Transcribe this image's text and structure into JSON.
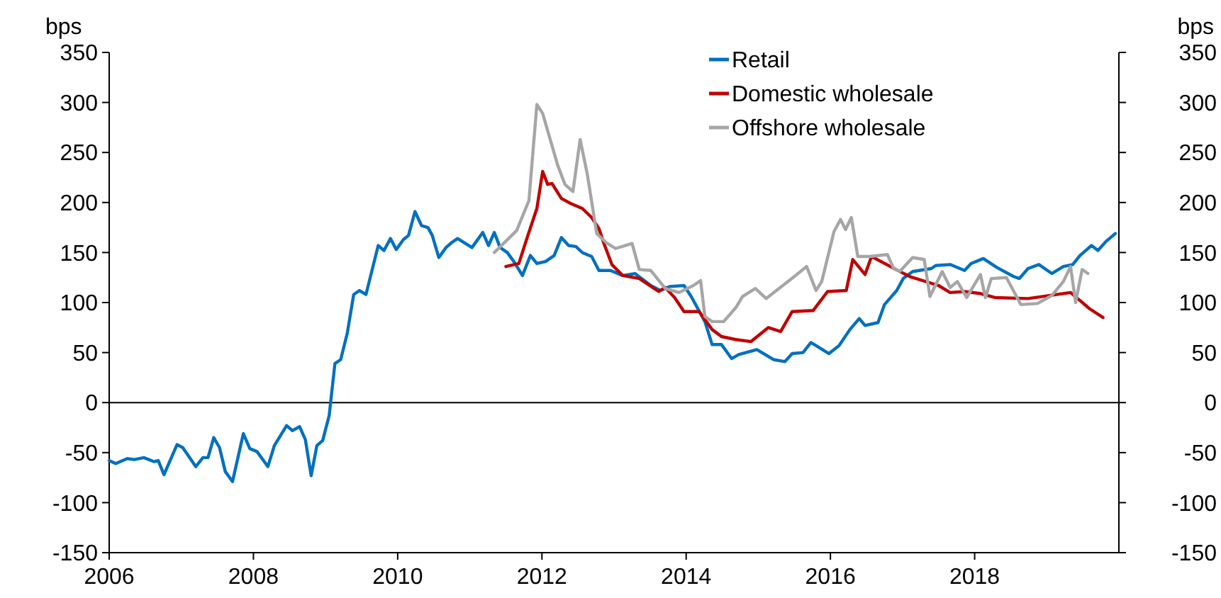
{
  "chart_data": {
    "type": "line",
    "ylabel": "bps",
    "y2label": "bps",
    "xlim": [
      2006,
      2020
    ],
    "xticks": [
      2006,
      2008,
      2010,
      2012,
      2014,
      2016,
      2018
    ],
    "ylim": [
      -150,
      350
    ],
    "yticks": [
      -150,
      -100,
      -50,
      0,
      50,
      100,
      150,
      200,
      250,
      300,
      350
    ],
    "y2lim": [
      -150,
      350
    ],
    "y2ticks": [
      -150,
      -100,
      -50,
      0,
      50,
      100,
      150,
      200,
      250,
      300,
      350
    ],
    "grid": false,
    "legend": "top right",
    "marker": "none",
    "line_style": "solid",
    "ref_lines": [
      {
        "axis": "y",
        "value": 0,
        "color": "#000000"
      }
    ],
    "series": [
      {
        "name": "Retail",
        "color": "#0070c0",
        "x": [
          2006.0,
          2006.09,
          2006.25,
          2006.35,
          2006.48,
          2006.62,
          2006.68,
          2006.76,
          2006.94,
          2007.02,
          2007.2,
          2007.3,
          2007.37,
          2007.45,
          2007.53,
          2007.61,
          2007.71,
          2007.86,
          2007.95,
          2008.05,
          2008.2,
          2008.29,
          2008.46,
          2008.54,
          2008.64,
          2008.72,
          2008.8,
          2008.88,
          2008.96,
          2009.05,
          2009.13,
          2009.21,
          2009.3,
          2009.39,
          2009.47,
          2009.56,
          2009.64,
          2009.73,
          2009.81,
          2009.9,
          2009.98,
          2010.08,
          2010.15,
          2010.24,
          2010.33,
          2010.42,
          2010.48,
          2010.57,
          2010.67,
          2010.75,
          2010.83,
          2011.03,
          2011.18,
          2011.26,
          2011.34,
          2011.42,
          2011.52,
          2011.62,
          2011.73,
          2011.84,
          2011.93,
          2012.05,
          2012.17,
          2012.27,
          2012.37,
          2012.47,
          2012.56,
          2012.69,
          2012.79,
          2012.95,
          2013.12,
          2013.29,
          2013.38,
          2013.51,
          2013.64,
          2013.77,
          2013.97,
          2014.07,
          2014.26,
          2014.36,
          2014.49,
          2014.63,
          2014.73,
          2014.98,
          2015.21,
          2015.37,
          2015.47,
          2015.62,
          2015.73,
          2015.98,
          2016.12,
          2016.27,
          2016.4,
          2016.48,
          2016.66,
          2016.75,
          2016.92,
          2017.01,
          2017.14,
          2017.4,
          2017.46,
          2017.66,
          2017.86,
          2017.95,
          2018.12,
          2018.31,
          2018.54,
          2018.62,
          2018.74,
          2018.89,
          2019.07,
          2019.23,
          2019.36,
          2019.46,
          2019.62,
          2019.71,
          2019.82,
          2019.95
        ],
        "values": [
          -58,
          -61,
          -56,
          -57,
          -55,
          -59,
          -58,
          -72,
          -42,
          -45,
          -64,
          -55,
          -55,
          -35,
          -45,
          -69,
          -79,
          -31,
          -46,
          -49,
          -64,
          -43,
          -23,
          -28,
          -24,
          -37,
          -73,
          -43,
          -38,
          -13,
          39,
          43,
          69,
          108,
          112,
          108,
          131,
          157,
          152,
          164,
          153,
          163,
          167,
          191,
          177,
          175,
          167,
          145,
          155,
          160,
          164,
          155,
          170,
          157,
          170,
          155,
          150,
          140,
          127,
          147,
          139,
          141,
          147,
          165,
          157,
          156,
          150,
          146,
          132,
          132,
          127,
          129,
          124,
          117,
          112,
          116,
          117,
          106,
          81,
          58,
          58,
          44,
          48,
          53,
          43,
          41,
          49,
          50,
          60,
          49,
          57,
          73,
          84,
          77,
          80,
          98,
          112,
          124,
          131,
          134,
          137,
          138,
          132,
          139,
          144,
          135,
          126,
          124,
          134,
          138,
          129,
          136,
          138,
          147,
          157,
          152,
          161,
          169
        ]
      },
      {
        "name": "Domestic wholesale",
        "color": "#c00000",
        "x": [
          2011.5,
          2011.68,
          2011.8,
          2011.93,
          2012.01,
          2012.08,
          2012.14,
          2012.27,
          2012.4,
          2012.56,
          2012.69,
          2012.79,
          2012.86,
          2012.97,
          2013.12,
          2013.35,
          2013.62,
          2013.71,
          2013.84,
          2013.97,
          2014.18,
          2014.36,
          2014.49,
          2014.69,
          2014.9,
          2015.14,
          2015.31,
          2015.47,
          2015.76,
          2015.96,
          2016.22,
          2016.31,
          2016.48,
          2016.57,
          2016.91,
          2017.1,
          2017.5,
          2017.66,
          2017.86,
          2018.08,
          2018.28,
          2018.74,
          2019.33,
          2019.59,
          2019.78
        ],
        "values": [
          136,
          139,
          166,
          194,
          231,
          218,
          219,
          204,
          199,
          194,
          185,
          174,
          159,
          138,
          127,
          124,
          111,
          115,
          105,
          91,
          91,
          73,
          66,
          63,
          61,
          75,
          71,
          91,
          92,
          111,
          112,
          143,
          128,
          146,
          133,
          126,
          117,
          110,
          111,
          109,
          105,
          104,
          110,
          94,
          85
        ]
      },
      {
        "name": "Offshore wholesale",
        "color": "#a6a6a6",
        "x": [
          2011.34,
          2011.65,
          2011.82,
          2011.93,
          2012.01,
          2012.22,
          2012.32,
          2012.43,
          2012.53,
          2012.63,
          2012.76,
          2012.89,
          2013.02,
          2013.25,
          2013.35,
          2013.51,
          2013.71,
          2013.9,
          2014.1,
          2014.2,
          2014.26,
          2014.36,
          2014.52,
          2014.69,
          2014.78,
          2014.96,
          2015.11,
          2015.5,
          2015.67,
          2015.8,
          2015.88,
          2016.05,
          2016.14,
          2016.21,
          2016.29,
          2016.38,
          2016.55,
          2016.79,
          2016.87,
          2016.96,
          2017.14,
          2017.3,
          2017.38,
          2017.55,
          2017.66,
          2017.76,
          2017.89,
          2018.08,
          2018.15,
          2018.23,
          2018.44,
          2018.64,
          2018.87,
          2019.07,
          2019.23,
          2019.33,
          2019.4,
          2019.49,
          2019.57
        ],
        "values": [
          150,
          172,
          202,
          298,
          289,
          237,
          218,
          211,
          263,
          228,
          169,
          160,
          154,
          159,
          133,
          132,
          114,
          110,
          117,
          122,
          86,
          81,
          81,
          95,
          106,
          114,
          104,
          126,
          136,
          112,
          121,
          171,
          183,
          173,
          185,
          146,
          146,
          148,
          135,
          131,
          145,
          143,
          106,
          131,
          115,
          121,
          105,
          128,
          105,
          124,
          125,
          98,
          99,
          107,
          121,
          136,
          100,
          133,
          129
        ]
      }
    ]
  }
}
